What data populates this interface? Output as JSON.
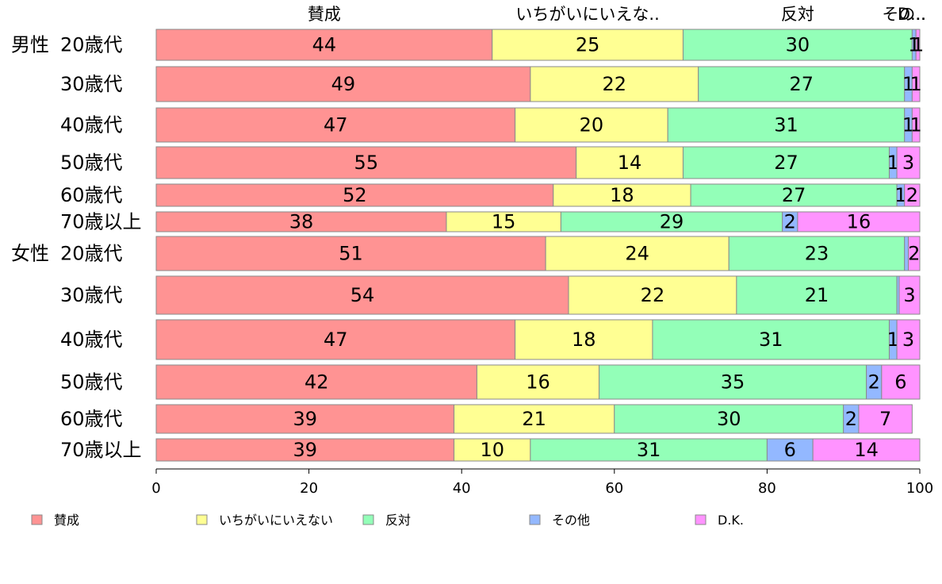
{
  "chart_data": {
    "type": "bar",
    "orientation": "horizontal",
    "stacked": true,
    "xlim": [
      0,
      100
    ],
    "x_ticks": [
      "0",
      "20",
      "40",
      "60",
      "80",
      "100"
    ],
    "column_headers": [
      "賛成",
      "いちがいにいえな..",
      "反対",
      "その..",
      "D..."
    ],
    "legend_position": "bottom",
    "series": [
      {
        "name": "賛成",
        "color": "#ff9393"
      },
      {
        "name": "いちがいにいえない",
        "color": "#ffff93"
      },
      {
        "name": "反対",
        "color": "#93ffb8"
      },
      {
        "name": "その他",
        "color": "#93b8ff"
      },
      {
        "name": "D.K.",
        "color": "#ff93ff"
      }
    ],
    "rows": [
      {
        "group": "男性",
        "label": "20歳代",
        "values": [
          44,
          25,
          30,
          0.5,
          1
        ],
        "labels": [
          "44",
          "25",
          "30",
          "1",
          "1"
        ]
      },
      {
        "group": "",
        "label": "30歳代",
        "values": [
          49,
          22,
          27,
          1,
          1
        ],
        "labels": [
          "49",
          "22",
          "27",
          "1",
          "1"
        ]
      },
      {
        "group": "",
        "label": "40歳代",
        "values": [
          47,
          20,
          31,
          1,
          1
        ],
        "labels": [
          "47",
          "20",
          "31",
          "1",
          "1"
        ]
      },
      {
        "group": "",
        "label": "50歳代",
        "values": [
          55,
          14,
          27,
          1,
          3
        ],
        "labels": [
          "55",
          "14",
          "27",
          "1",
          "3"
        ]
      },
      {
        "group": "",
        "label": "60歳代",
        "values": [
          52,
          18,
          27,
          1,
          2
        ],
        "labels": [
          "52",
          "18",
          "27",
          "1",
          "2"
        ]
      },
      {
        "group": "",
        "label": "70歳以上",
        "values": [
          38,
          15,
          29,
          2,
          16
        ],
        "labels": [
          "38",
          "15",
          "29",
          "2",
          "16"
        ]
      },
      {
        "group": "女性",
        "label": "20歳代",
        "values": [
          51,
          24,
          23,
          0.5,
          2
        ],
        "labels": [
          "51",
          "24",
          "23",
          "",
          "2"
        ]
      },
      {
        "group": "",
        "label": "30歳代",
        "values": [
          54,
          22,
          21,
          0.3,
          3
        ],
        "labels": [
          "54",
          "22",
          "21",
          "",
          "3"
        ]
      },
      {
        "group": "",
        "label": "40歳代",
        "values": [
          47,
          18,
          31,
          1,
          3
        ],
        "labels": [
          "47",
          "18",
          "31",
          "1",
          "3"
        ]
      },
      {
        "group": "",
        "label": "50歳代",
        "values": [
          42,
          16,
          35,
          2,
          6
        ],
        "labels": [
          "42",
          "16",
          "35",
          "2",
          "6"
        ]
      },
      {
        "group": "",
        "label": "60歳代",
        "values": [
          39,
          21,
          30,
          2,
          7
        ],
        "labels": [
          "39",
          "21",
          "30",
          "2",
          "7"
        ]
      },
      {
        "group": "",
        "label": "70歳以上",
        "values": [
          39,
          10,
          31,
          6,
          14
        ],
        "labels": [
          "39",
          "10",
          "31",
          "6",
          "14"
        ]
      }
    ]
  }
}
